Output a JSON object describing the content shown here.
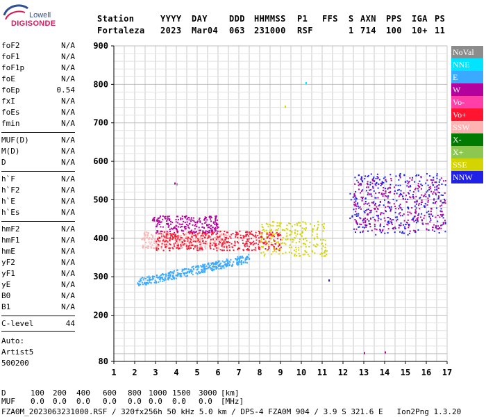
{
  "logo": {
    "top": "Lowell",
    "bottom": "DIGISONDE"
  },
  "header": {
    "labels": [
      "Station",
      "YYYY",
      "DAY",
      "DDD",
      "HHMMSS",
      "P1",
      "FFS",
      "S",
      "AXN",
      "PPS",
      "IGA",
      "PS"
    ],
    "values": [
      "Fortaleza",
      "2023",
      "Mar04",
      "063",
      "231000",
      "RSF",
      "",
      "1",
      "714",
      "100",
      "10+",
      "11"
    ]
  },
  "params": [
    {
      "name": "foF2",
      "value": "N/A"
    },
    {
      "name": "foF1",
      "value": "N/A"
    },
    {
      "name": "foF1p",
      "value": "N/A"
    },
    {
      "name": "foE",
      "value": "N/A"
    },
    {
      "name": "foEp",
      "value": "0.54"
    },
    {
      "name": "fxI",
      "value": "N/A"
    },
    {
      "name": "foEs",
      "value": "N/A"
    },
    {
      "name": "fmin",
      "value": "N/A"
    },
    {
      "name": "MUF(D)",
      "value": "N/A"
    },
    {
      "name": "M(D)",
      "value": "N/A"
    },
    {
      "name": "D",
      "value": "N/A"
    },
    {
      "name": "h`F",
      "value": "N/A"
    },
    {
      "name": "h`F2",
      "value": "N/A"
    },
    {
      "name": "h`E",
      "value": "N/A"
    },
    {
      "name": "h`Es",
      "value": "N/A"
    },
    {
      "name": "hmF2",
      "value": "N/A"
    },
    {
      "name": "hmF1",
      "value": "N/A"
    },
    {
      "name": "hmE",
      "value": "N/A"
    },
    {
      "name": "yF2",
      "value": "N/A"
    },
    {
      "name": "yF1",
      "value": "N/A"
    },
    {
      "name": "yE",
      "value": "N/A"
    },
    {
      "name": "B0",
      "value": "N/A"
    },
    {
      "name": "B1",
      "value": "N/A"
    },
    {
      "name": "C-level",
      "value": "44"
    }
  ],
  "auto": {
    "label": "Auto:",
    "software": "Artist5",
    "version": "500200"
  },
  "legend": [
    {
      "name": "NoVal",
      "color": "#8c8c8c"
    },
    {
      "name": "NNE",
      "color": "#00e4ff"
    },
    {
      "name": "E",
      "color": "#39aaff"
    },
    {
      "name": "W",
      "color": "#b4009c"
    },
    {
      "name": "Vo-",
      "color": "#ff3fa8"
    },
    {
      "name": "Vo+",
      "color": "#ff1530"
    },
    {
      "name": "SSW",
      "color": "#ffb2b2"
    },
    {
      "name": "X-",
      "color": "#007a00"
    },
    {
      "name": "X+",
      "color": "#8cc850"
    },
    {
      "name": "SSE",
      "color": "#d4d400"
    },
    {
      "name": "NNW",
      "color": "#2020e6"
    }
  ],
  "footer": {
    "d_row": [
      "D",
      "100",
      "200",
      "400",
      "600",
      "800",
      "1000",
      "1500",
      "3000",
      "[km]"
    ],
    "muf_row": [
      "MUF",
      "0.0",
      "0.0",
      "0.0",
      "0.0",
      "0.0",
      "0.0",
      "0.0",
      "0.0",
      "[MHz]"
    ],
    "line": "FZA0M_2023063231000.RSF / 320fx256h 50 kHz 5.0 km / DPS-4 FZA0M 904 / 3.9 S 321.6 E   Ion2Png 1.3.20"
  },
  "chart_data": {
    "type": "scatter",
    "xlim": [
      1,
      17
    ],
    "ylim": [
      80,
      900
    ],
    "x_ticks": [
      "1",
      "2",
      "3",
      "4",
      "5",
      "6",
      "7",
      "8",
      "9",
      "10",
      "11",
      "12",
      "13",
      "14",
      "15",
      "16",
      "17"
    ],
    "y_ticks": [
      "80",
      "200",
      "300",
      "400",
      "500",
      "600",
      "700",
      "800",
      "900"
    ],
    "grid": true,
    "clusters": [
      {
        "mode": "E",
        "color": "#39aaff",
        "x_range": [
          2.1,
          7.5
        ],
        "y_range": [
          275,
          360
        ],
        "trend": "rising"
      },
      {
        "mode": "SSW",
        "color": "#ffb2b2",
        "x_range": [
          2.3,
          6.5
        ],
        "y_range": [
          375,
          420
        ]
      },
      {
        "mode": "Vo+",
        "color": "#ff1530",
        "x_range": [
          3.0,
          9.0
        ],
        "y_range": [
          370,
          420
        ]
      },
      {
        "mode": "W",
        "color": "#b4009c",
        "x_range": [
          2.8,
          6.0
        ],
        "y_range": [
          415,
          460
        ]
      },
      {
        "mode": "SSE",
        "color": "#d4d400",
        "x_range": [
          8.0,
          11.2
        ],
        "y_range": [
          355,
          445
        ]
      },
      {
        "mode": "NNW",
        "color": "#2020e6",
        "x_range": [
          12.3,
          16.9
        ],
        "y_range": [
          410,
          570
        ]
      },
      {
        "mode": "W",
        "color": "#b4009c",
        "x_range": [
          12.5,
          16.9
        ],
        "y_range": [
          420,
          560
        ]
      }
    ],
    "isolated_points": [
      {
        "x": 3.9,
        "y": 545,
        "mode": "W"
      },
      {
        "x": 4.0,
        "y": 543,
        "mode": "NoVal"
      },
      {
        "x": 9.2,
        "y": 745,
        "mode": "SSE"
      },
      {
        "x": 10.2,
        "y": 806,
        "mode": "NNE"
      },
      {
        "x": 11.3,
        "y": 293,
        "mode": "NNW"
      },
      {
        "x": 13.0,
        "y": 104,
        "mode": "W"
      },
      {
        "x": 14.0,
        "y": 106,
        "mode": "W"
      }
    ]
  }
}
